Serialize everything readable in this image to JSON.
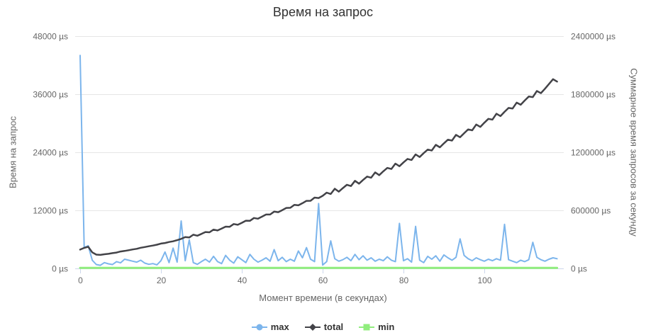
{
  "styles": {
    "background": "#ffffff",
    "grid_color": "#e6e6e6",
    "axis_line_color": "#ccd6eb",
    "tick_label_color": "#666666",
    "title_color": "#333333",
    "legend_text_color": "#333333"
  },
  "chart_data": {
    "type": "line",
    "title": "Время на запрос",
    "xlabel": "Момент времени (в секундах)",
    "x_ticks": [
      0,
      20,
      40,
      60,
      80,
      100
    ],
    "x_unit": "seconds",
    "x_start": 0,
    "x_step": 1,
    "x_max": 118,
    "grid": "horizontal",
    "legend_position": "bottom",
    "y_left": {
      "title": "Время на запрос",
      "min": 0,
      "max": 48000,
      "ticks": [
        {
          "value": 0,
          "label": "0 µs"
        },
        {
          "value": 12000,
          "label": "12000 µs"
        },
        {
          "value": 24000,
          "label": "24000 µs"
        },
        {
          "value": 36000,
          "label": "36000 µs"
        },
        {
          "value": 48000,
          "label": "48000 µs"
        }
      ]
    },
    "y_right": {
      "title": "Суммарное время запросов за секунду",
      "min": 0,
      "max": 2400000,
      "ticks": [
        {
          "value": 0,
          "label": "0 µs"
        },
        {
          "value": 600000,
          "label": "600000 µs"
        },
        {
          "value": 1200000,
          "label": "1200000 µs"
        },
        {
          "value": 1800000,
          "label": "1800000 µs"
        },
        {
          "value": 2400000,
          "label": "2400000 µs"
        }
      ]
    },
    "series": [
      {
        "name": "max",
        "axis": "left",
        "color": "#7cb5ec",
        "marker": "circle",
        "line_width": 2,
        "values": [
          44000,
          4300,
          4700,
          1700,
          800,
          650,
          1200,
          950,
          800,
          1400,
          1150,
          1900,
          1700,
          1500,
          1300,
          1700,
          1100,
          850,
          1000,
          750,
          1600,
          3400,
          1200,
          4200,
          1300,
          9800,
          1600,
          5900,
          1200,
          850,
          1400,
          1900,
          1300,
          2500,
          1400,
          1000,
          2700,
          1700,
          1100,
          2400,
          1800,
          1200,
          2900,
          1900,
          1300,
          1700,
          2200,
          1500,
          3900,
          1600,
          2300,
          1400,
          1900,
          1500,
          3600,
          2200,
          4300,
          1900,
          1400,
          13400,
          700,
          1400,
          5700,
          2000,
          1500,
          1800,
          2300,
          1600,
          2900,
          1800,
          2600,
          1700,
          2200,
          1500,
          1900,
          1600,
          2400,
          1700,
          1400,
          9300,
          1600,
          2000,
          1300,
          8700,
          1700,
          1200,
          2500,
          1900,
          2600,
          1500,
          2800,
          2200,
          1700,
          2300,
          6100,
          2700,
          2000,
          1600,
          2200,
          1800,
          1500,
          1900,
          1600,
          2000,
          1700,
          9100,
          1800,
          1500,
          1200,
          1700,
          1400,
          1800,
          5400,
          2300,
          1800,
          1500,
          1900,
          2200,
          2000
        ]
      },
      {
        "name": "total",
        "axis": "right",
        "color": "#434348",
        "marker": "diamond",
        "line_width": 2.5,
        "values": [
          195000,
          212000,
          224000,
          166000,
          143000,
          140000,
          146000,
          151000,
          158000,
          164000,
          175000,
          181000,
          188000,
          196000,
          203000,
          214000,
          221000,
          229000,
          236000,
          245000,
          257000,
          263000,
          273000,
          280000,
          292000,
          305000,
          324000,
          320000,
          348000,
          338000,
          356000,
          376000,
          373000,
          401000,
          392000,
          411000,
          432000,
          430000,
          459000,
          451000,
          471000,
          493000,
          492000,
          521000,
          514000,
          535000,
          557000,
          557000,
          587000,
          581000,
          602000,
          625000,
          626000,
          657000,
          652000,
          674000,
          698000,
          699000,
          732000,
          727000,
          750000,
          783000,
          769000,
          823000,
          793000,
          830000,
          864000,
          851000,
          905000,
          876000,
          914000,
          949000,
          937000,
          992000,
          964000,
          1003000,
          1038000,
          1027000,
          1083000,
          1056000,
          1095000,
          1131000,
          1120000,
          1178000,
          1151000,
          1191000,
          1228000,
          1218000,
          1277000,
          1251000,
          1292000,
          1330000,
          1321000,
          1380000,
          1355000,
          1397000,
          1436000,
          1427000,
          1487000,
          1462000,
          1505000,
          1545000,
          1537000,
          1598000,
          1574000,
          1618000,
          1658000,
          1652000,
          1713000,
          1691000,
          1735000,
          1776000,
          1770000,
          1833000,
          1811000,
          1856000,
          1905000,
          1955000,
          1930000
        ]
      },
      {
        "name": "min",
        "axis": "left",
        "color": "#90ed7d",
        "marker": "square",
        "line_width": 3,
        "constant_value": 100,
        "count": 119
      }
    ]
  }
}
